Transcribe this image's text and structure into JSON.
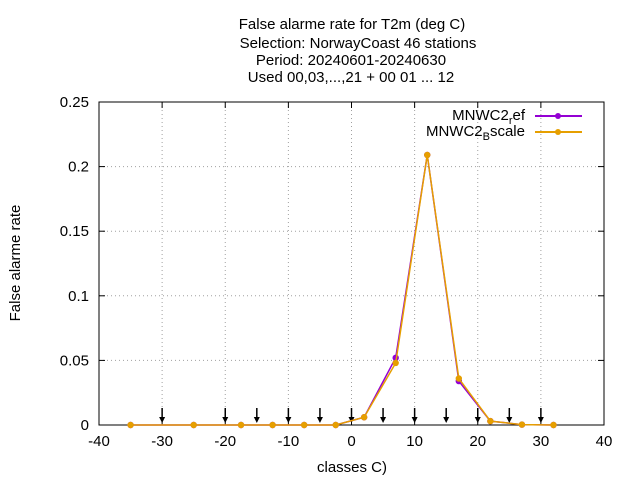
{
  "chart_data": {
    "type": "line",
    "title_lines": [
      "False alarme rate  for T2m (deg C)",
      "Selection: NorwayCoast     46 stations",
      "Period: 20240601-20240630",
      "Used 00,03,...,21 + 00 01 ... 12"
    ],
    "xlabel": "classes C)",
    "ylabel": "False alarme rate",
    "xlim": [
      -40,
      40
    ],
    "ylim": [
      0,
      0.25
    ],
    "x_ticks": [
      -40,
      -30,
      -20,
      -10,
      0,
      10,
      20,
      30,
      40
    ],
    "x_tick_labels": [
      "-40",
      "-30",
      "-20",
      "-10",
      "0",
      "10",
      "20",
      "30",
      "40"
    ],
    "y_ticks": [
      0,
      0.05,
      0.1,
      0.15,
      0.2,
      0.25
    ],
    "y_tick_labels": [
      "0",
      "0.05",
      "0.1",
      "0.15",
      "0.2",
      "0.25"
    ],
    "grid": true,
    "legend_position": "top-right",
    "threshold_arrows_x": [
      -30,
      -20,
      -15,
      -10,
      -5,
      0,
      5,
      10,
      15,
      20,
      25,
      30
    ],
    "series": [
      {
        "name": "MNWC2_ref",
        "legend_main": "MNWC2",
        "legend_sub": "r",
        "legend_rest": "ef",
        "color": "#9400d3",
        "x": [
          -35,
          -25,
          -17.5,
          -12.5,
          -7.5,
          -2.5,
          2,
          7,
          12,
          17,
          22,
          27,
          32
        ],
        "y": [
          0,
          0,
          0,
          0,
          0,
          0,
          0.006,
          0.052,
          0.209,
          0.034,
          0.003,
          0.0003,
          0
        ]
      },
      {
        "name": "MNWC2_Bscale",
        "legend_main": "MNWC2",
        "legend_sub": "B",
        "legend_rest": "scale",
        "color": "#e69f00",
        "x": [
          -35,
          -25,
          -17.5,
          -12.5,
          -7.5,
          -2.5,
          2,
          7,
          12,
          17,
          22,
          27,
          32
        ],
        "y": [
          0,
          0,
          0,
          0,
          0,
          0,
          0.006,
          0.048,
          0.209,
          0.036,
          0.003,
          0.0003,
          0
        ]
      }
    ]
  }
}
